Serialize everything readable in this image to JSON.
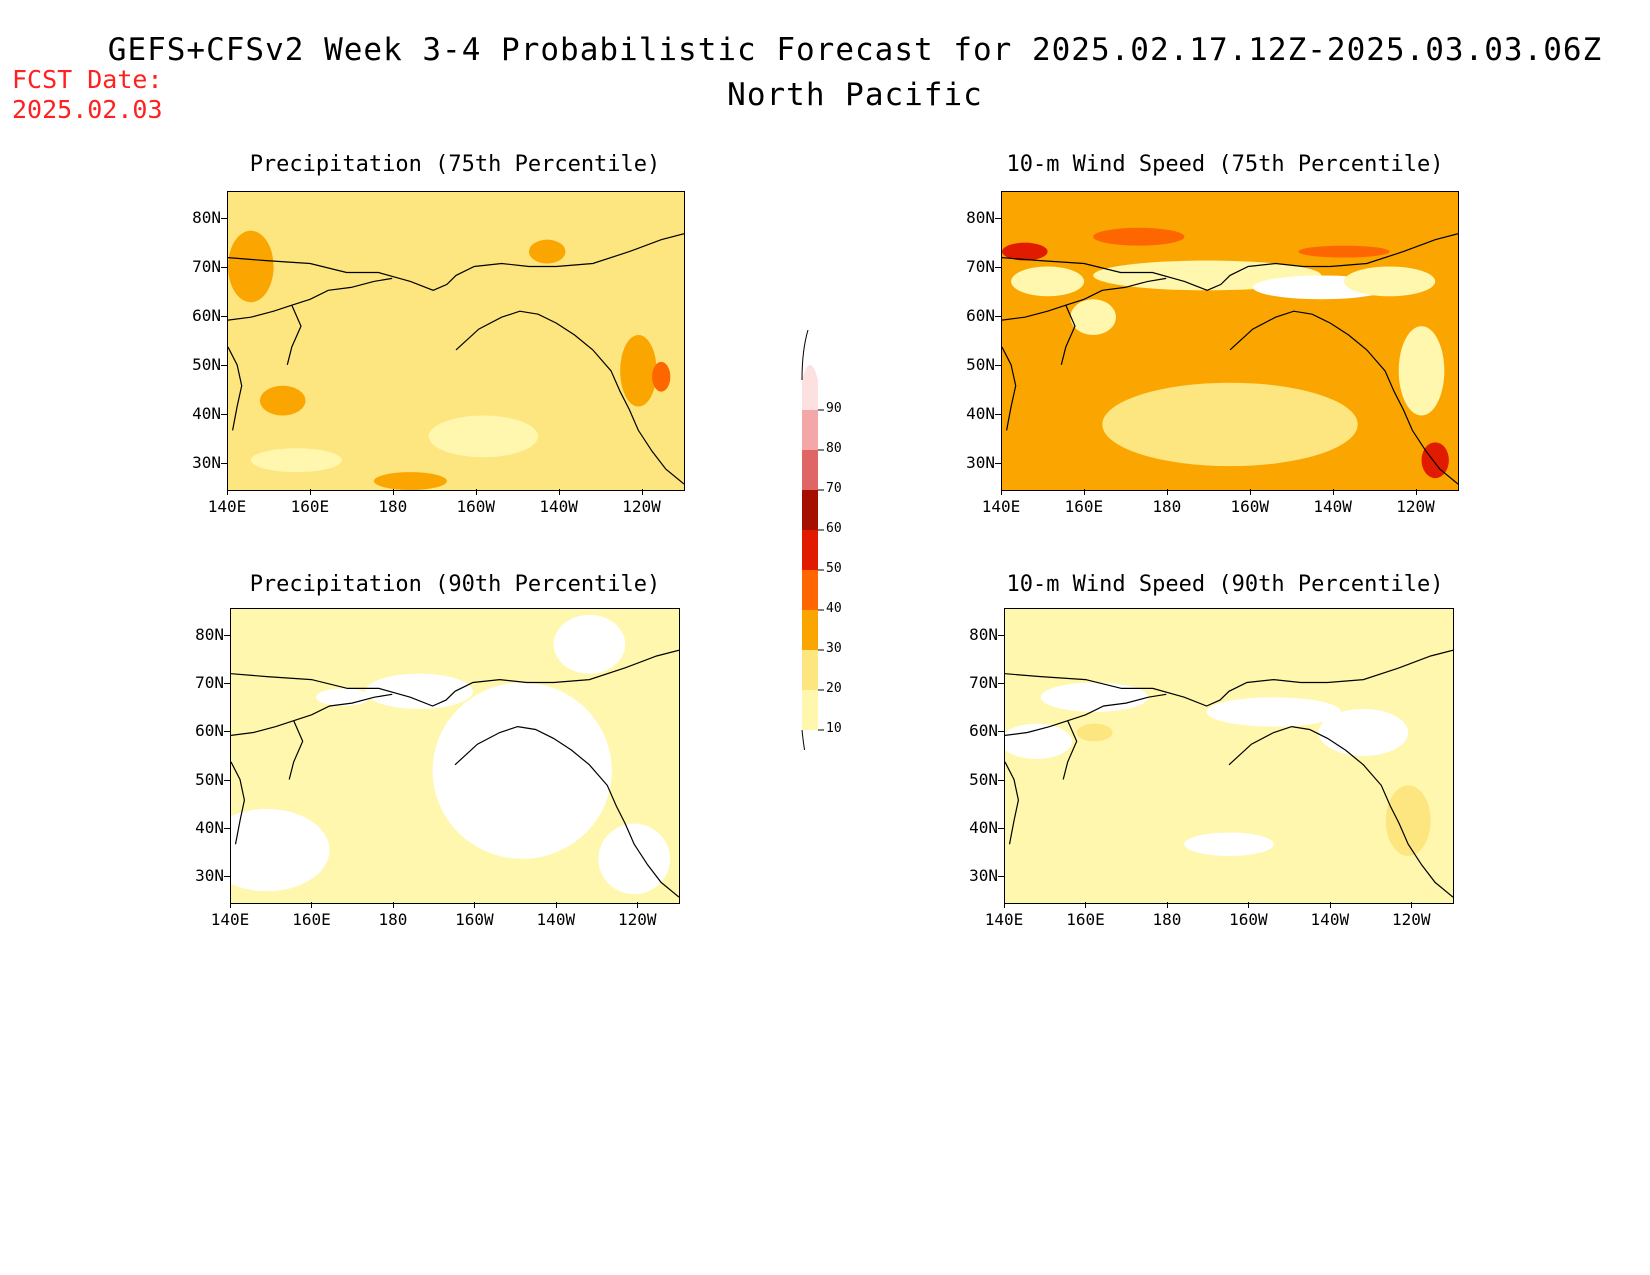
{
  "header": {
    "title": "GEFS+CFSv2 Week 3-4 Probabilistic Forecast for 2025.02.17.12Z-2025.03.03.06Z",
    "subtitle": "North Pacific",
    "fcst_label": "FCST Date:",
    "fcst_date": "2025.02.03"
  },
  "panels": [
    {
      "id": "precip75",
      "title": "Precipitation (75th Percentile)",
      "base_color": "#fde57f"
    },
    {
      "id": "wind75",
      "title": "10-m Wind Speed (75th Percentile)",
      "base_color": "#fba600"
    },
    {
      "id": "precip90",
      "title": "Precipitation (90th Percentile)",
      "base_color": "#fef7ad"
    },
    {
      "id": "wind90",
      "title": "10-m Wind Speed (90th Percentile)",
      "base_color": "#fef7ad"
    }
  ],
  "axes": {
    "lat_labels": [
      "80N",
      "70N",
      "60N",
      "50N",
      "40N",
      "30N"
    ],
    "lon_labels": [
      "140E",
      "160E",
      "180",
      "160W",
      "140W",
      "120W"
    ]
  },
  "colorbar": {
    "labels": [
      "10",
      "20",
      "30",
      "40",
      "50",
      "60",
      "70",
      "80",
      "90"
    ],
    "colors": [
      "#fef7ad",
      "#fde57f",
      "#fba600",
      "#fe6600",
      "#e11b00",
      "#a50f00",
      "#e06666",
      "#f4a7a7",
      "#fde1e1"
    ]
  }
}
